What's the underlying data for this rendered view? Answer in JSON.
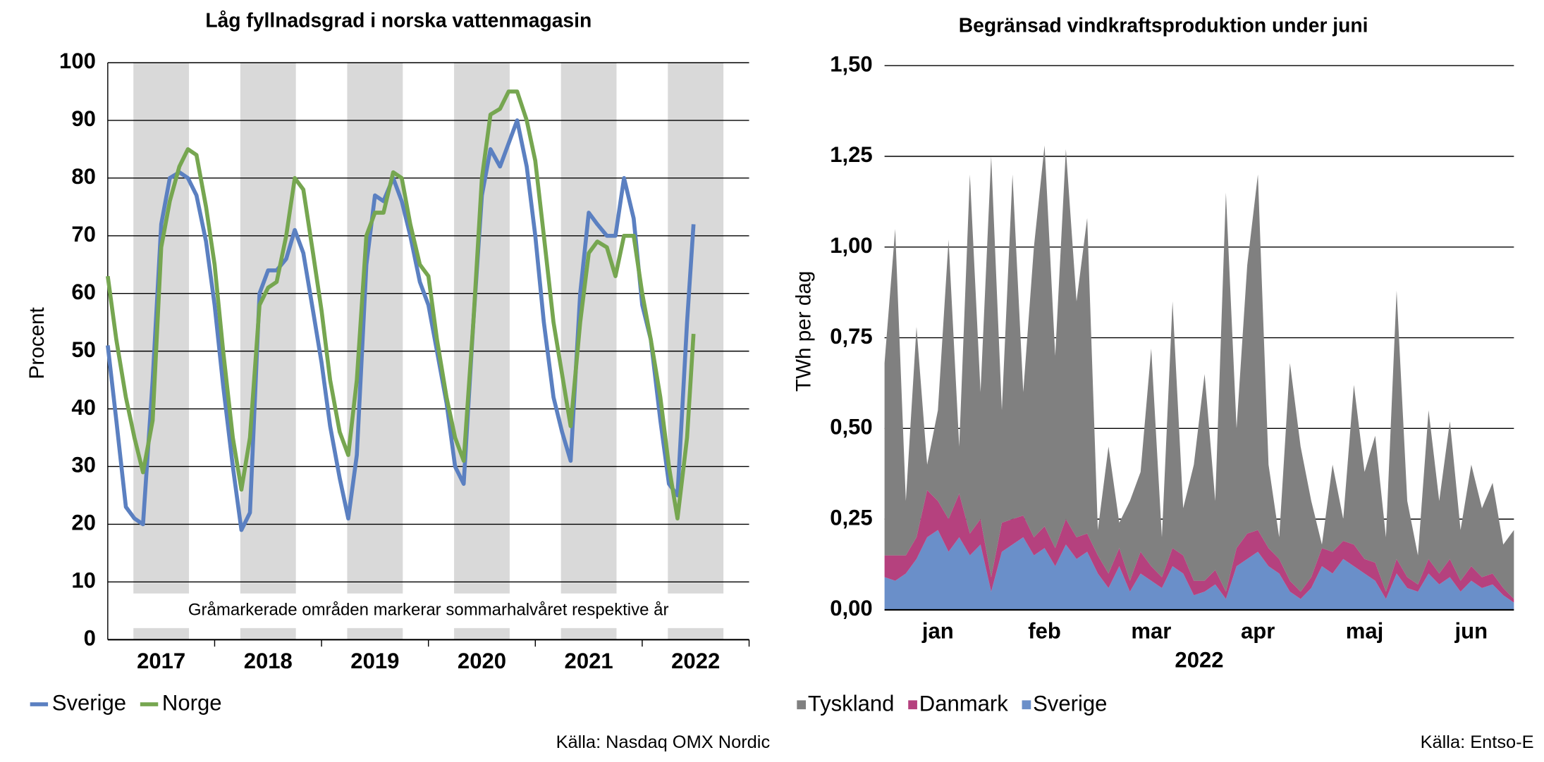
{
  "chart_data": [
    {
      "type": "line",
      "title": "Låg fyllnadsgrad i norska vattenmagasin",
      "ylabel": "Procent",
      "note": "Gråmarkerade områden markerar sommarhalvåret respektive år",
      "source": "Källa: Nasdaq OMX Nordic",
      "xlim": [
        2017,
        2023
      ],
      "ylim": [
        0,
        100
      ],
      "yticks": [
        0,
        10,
        20,
        30,
        40,
        50,
        60,
        70,
        80,
        90,
        100
      ],
      "xticks": [
        {
          "value": 2017.5,
          "label": "2017"
        },
        {
          "value": 2018.5,
          "label": "2018"
        },
        {
          "value": 2019.5,
          "label": "2019"
        },
        {
          "value": 2020.5,
          "label": "2020"
        },
        {
          "value": 2021.5,
          "label": "2021"
        },
        {
          "value": 2022.5,
          "label": "2022"
        }
      ],
      "shaded_spans": [
        [
          2017.24,
          2017.76
        ],
        [
          2018.24,
          2018.76
        ],
        [
          2019.24,
          2019.76
        ],
        [
          2020.24,
          2020.76
        ],
        [
          2021.24,
          2021.76
        ],
        [
          2022.24,
          2022.76
        ]
      ],
      "shade_color": "#d9d9d9",
      "grid": true,
      "legend": "bottom-left",
      "x": [
        2017,
        2017.08,
        2017.17,
        2017.25,
        2017.33,
        2017.42,
        2017.5,
        2017.58,
        2017.67,
        2017.75,
        2017.83,
        2017.92,
        2018,
        2018.08,
        2018.17,
        2018.25,
        2018.33,
        2018.42,
        2018.5,
        2018.58,
        2018.67,
        2018.75,
        2018.83,
        2018.92,
        2019,
        2019.08,
        2019.17,
        2019.25,
        2019.33,
        2019.42,
        2019.5,
        2019.58,
        2019.67,
        2019.75,
        2019.83,
        2019.92,
        2020,
        2020.08,
        2020.17,
        2020.25,
        2020.33,
        2020.42,
        2020.5,
        2020.58,
        2020.67,
        2020.75,
        2020.83,
        2020.92,
        2021,
        2021.08,
        2021.17,
        2021.25,
        2021.33,
        2021.42,
        2021.5,
        2021.58,
        2021.67,
        2021.75,
        2021.83,
        2021.92,
        2022,
        2022.08,
        2022.17,
        2022.25,
        2022.33,
        2022.42,
        2022.48
      ],
      "series": [
        {
          "name": "Sverige",
          "color": "#5b80c1",
          "values": [
            51,
            38,
            23,
            21,
            20,
            45,
            72,
            80,
            81,
            80,
            77,
            69,
            58,
            44,
            30,
            19,
            22,
            60,
            64,
            64,
            66,
            71,
            67,
            57,
            48,
            37,
            28,
            21,
            32,
            65,
            77,
            76,
            80,
            76,
            70,
            62,
            58,
            50,
            41,
            30,
            27,
            55,
            77,
            85,
            82,
            86,
            90,
            82,
            70,
            55,
            42,
            36,
            31,
            60,
            74,
            72,
            70,
            70,
            80,
            73,
            58,
            52,
            38,
            27,
            25,
            55,
            72
          ]
        },
        {
          "name": "Norge",
          "color": "#76a650",
          "values": [
            63,
            52,
            42,
            35,
            29,
            38,
            68,
            76,
            82,
            85,
            84,
            75,
            65,
            50,
            35,
            26,
            35,
            58,
            61,
            62,
            70,
            80,
            78,
            67,
            57,
            45,
            36,
            32,
            45,
            70,
            74,
            74,
            81,
            80,
            72,
            65,
            63,
            52,
            42,
            35,
            31,
            55,
            80,
            91,
            92,
            95,
            95,
            90,
            83,
            70,
            55,
            46,
            37,
            55,
            67,
            69,
            68,
            63,
            70,
            70,
            60,
            52,
            42,
            30,
            21,
            35,
            53
          ]
        }
      ]
    },
    {
      "type": "area",
      "stacked": true,
      "title": "Begränsad vindkraftsproduktion under juni",
      "ylabel": "TWh per dag",
      "xlabel": "2022",
      "source": "Källa: Entso-E",
      "ylim": [
        0,
        1.5
      ],
      "yticks": [
        {
          "value": 0,
          "label": "0,00"
        },
        {
          "value": 0.25,
          "label": "0,25"
        },
        {
          "value": 0.5,
          "label": "0,50"
        },
        {
          "value": 0.75,
          "label": "0,75"
        },
        {
          "value": 1,
          "label": "1,00"
        },
        {
          "value": 1.25,
          "label": "1,25"
        },
        {
          "value": 1.5,
          "label": "1,50"
        }
      ],
      "grid": true,
      "legend": "bottom-left",
      "categories": [
        null,
        null,
        null,
        null,
        null,
        "jan",
        null,
        null,
        null,
        null,
        null,
        null,
        null,
        null,
        null,
        "feb",
        null,
        null,
        null,
        null,
        null,
        null,
        null,
        null,
        null,
        "mar",
        null,
        null,
        null,
        null,
        null,
        null,
        null,
        null,
        null,
        "apr",
        null,
        null,
        null,
        null,
        null,
        null,
        null,
        null,
        null,
        "maj",
        null,
        null,
        null,
        null,
        null,
        null,
        null,
        null,
        null,
        "jun",
        null,
        null,
        null,
        null
      ],
      "series": [
        {
          "name": "Tyskland",
          "color": "#808080",
          "values": [
            0.53,
            0.9,
            0.15,
            0.58,
            0.07,
            0.25,
            0.77,
            0.13,
            0.99,
            0.35,
            1.16,
            0.31,
            0.95,
            0.34,
            0.8,
            1.05,
            0.53,
            1.02,
            0.65,
            0.87,
            0.07,
            0.35,
            0.07,
            0.22,
            0.22,
            0.6,
            0.11,
            0.68,
            0.13,
            0.32,
            0.57,
            0.19,
            1.1,
            0.33,
            0.74,
            0.98,
            0.23,
            0.06,
            0.6,
            0.4,
            0.21,
            0.01,
            0.24,
            0.06,
            0.44,
            0.24,
            0.35,
            0.15,
            0.74,
            0.21,
            0.08,
            0.41,
            0.2,
            0.38,
            0.14,
            0.28,
            0.19,
            0.25,
            0.12,
            0.19
          ]
        },
        {
          "name": "Danmark",
          "color": "#b5417e",
          "values": [
            0.06,
            0.07,
            0.05,
            0.06,
            0.13,
            0.08,
            0.09,
            0.12,
            0.06,
            0.07,
            0.04,
            0.08,
            0.07,
            0.06,
            0.05,
            0.06,
            0.05,
            0.07,
            0.06,
            0.05,
            0.05,
            0.04,
            0.05,
            0.03,
            0.06,
            0.04,
            0.03,
            0.05,
            0.05,
            0.04,
            0.03,
            0.04,
            0.02,
            0.05,
            0.07,
            0.06,
            0.05,
            0.04,
            0.03,
            0.02,
            0.03,
            0.05,
            0.06,
            0.05,
            0.06,
            0.04,
            0.05,
            0.02,
            0.04,
            0.03,
            0.02,
            0.04,
            0.03,
            0.05,
            0.03,
            0.04,
            0.03,
            0.03,
            0.02,
            0.01
          ]
        },
        {
          "name": "Sverige",
          "color": "#6a8fc9",
          "values": [
            0.09,
            0.08,
            0.1,
            0.14,
            0.2,
            0.22,
            0.16,
            0.2,
            0.15,
            0.18,
            0.05,
            0.16,
            0.18,
            0.2,
            0.15,
            0.17,
            0.12,
            0.18,
            0.14,
            0.16,
            0.1,
            0.06,
            0.12,
            0.05,
            0.1,
            0.08,
            0.06,
            0.12,
            0.1,
            0.04,
            0.05,
            0.07,
            0.03,
            0.12,
            0.14,
            0.16,
            0.12,
            0.1,
            0.05,
            0.03,
            0.06,
            0.12,
            0.1,
            0.14,
            0.12,
            0.1,
            0.08,
            0.03,
            0.1,
            0.06,
            0.05,
            0.1,
            0.07,
            0.09,
            0.05,
            0.08,
            0.06,
            0.07,
            0.04,
            0.02
          ]
        }
      ]
    }
  ]
}
